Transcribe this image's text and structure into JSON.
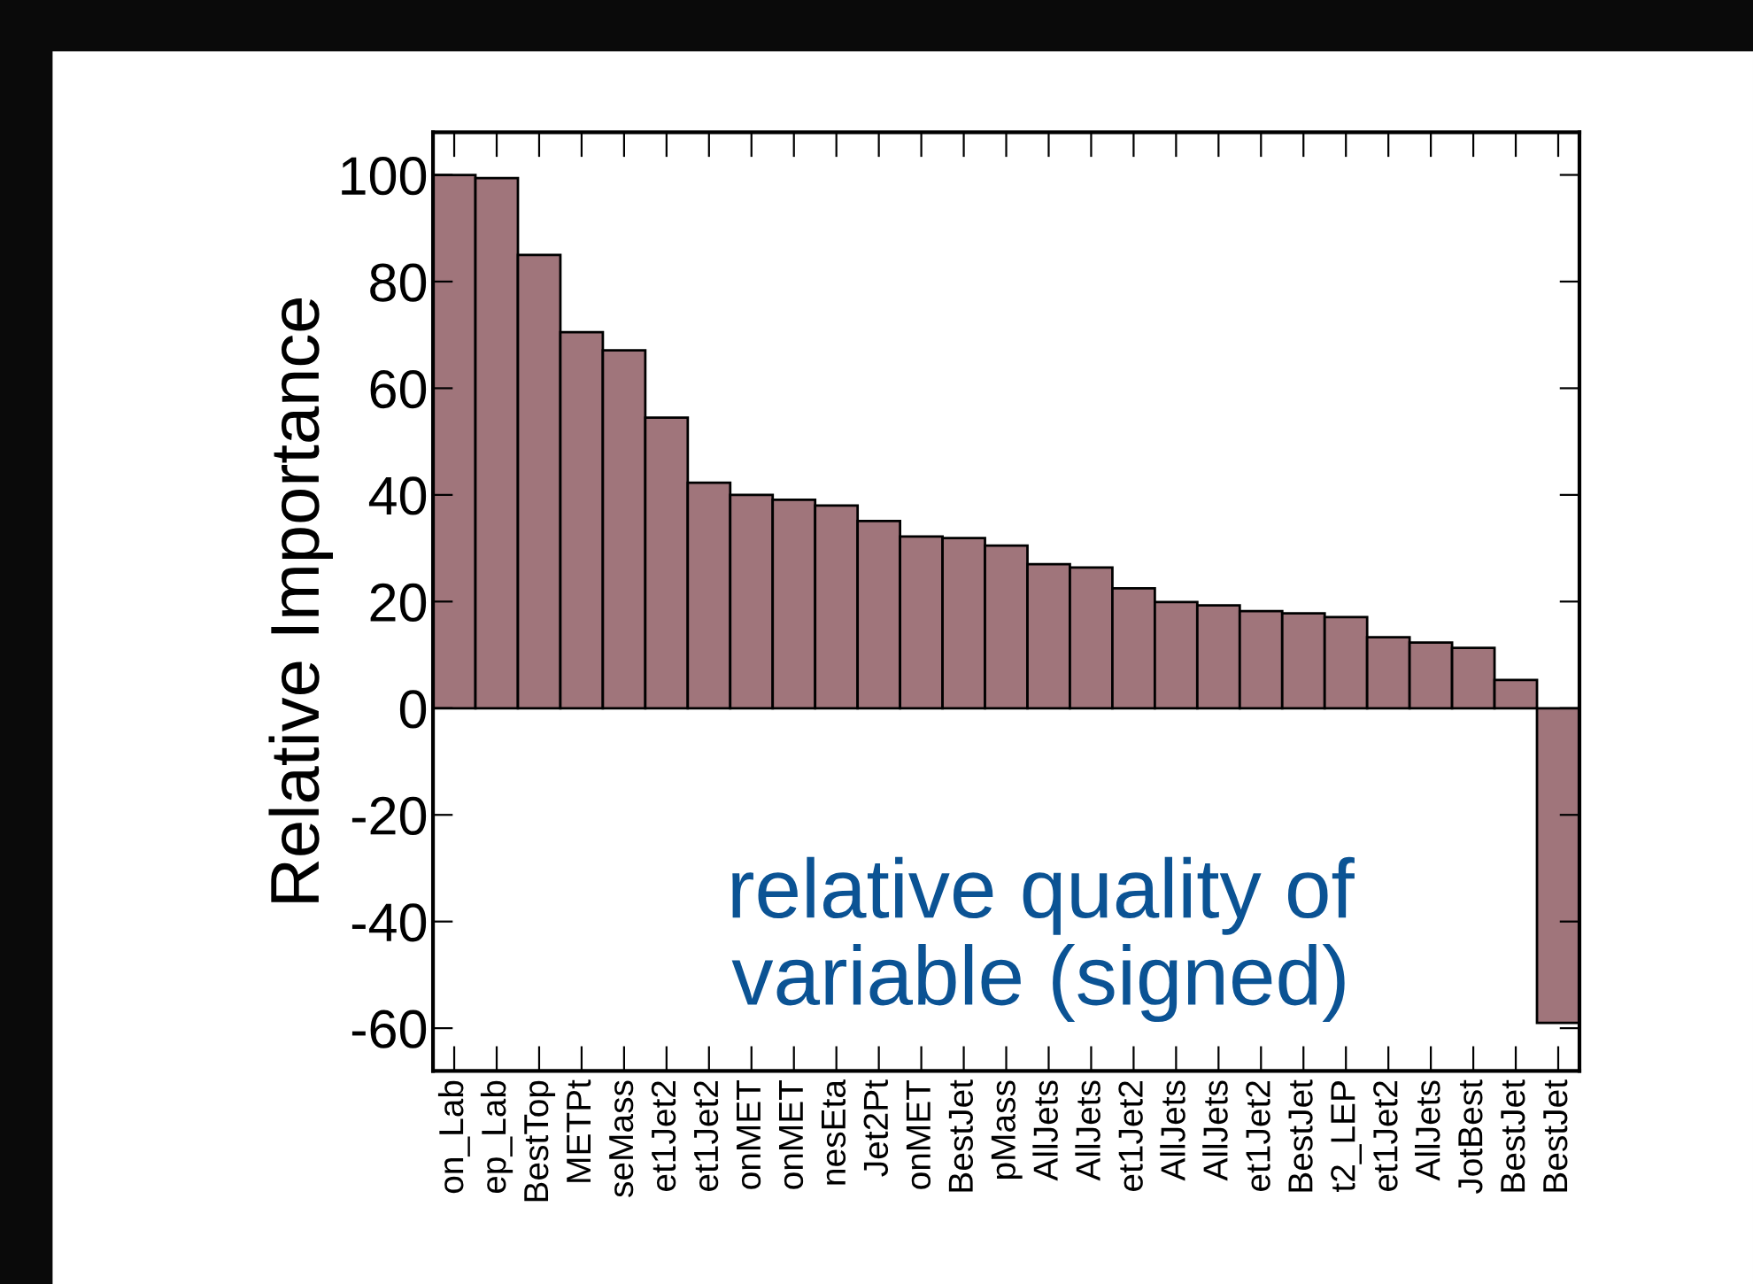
{
  "chart_data": {
    "type": "bar",
    "ylabel": "Relative Importance",
    "categories": [
      "on_Lab",
      "ep_Lab",
      "BestTop",
      "METPt",
      "seMass",
      "et1Jet2",
      "et1Jet2",
      "onMET",
      "onMET",
      "nesEta",
      "Jet2Pt",
      "onMET",
      "BestJet",
      "pMass",
      "AllJets",
      "AllJets",
      "et1Jet2",
      "AllJets",
      "AllJets",
      "et1Jet2",
      "BestJet",
      "t2_LEP",
      "et1Jet2",
      "AllJets",
      "JotBest",
      "BestJet",
      "BestJet"
    ],
    "values": [
      100,
      99.4,
      85,
      70.5,
      67.1,
      54.5,
      42.3,
      40,
      39.1,
      38,
      35.1,
      32.2,
      31.9,
      30.5,
      27,
      26.4,
      22.5,
      19.9,
      19.3,
      18.2,
      17.8,
      17.1,
      13.3,
      12.3,
      11.3,
      5.3,
      -59
    ],
    "color": "#a0757b",
    "ylim": [
      -68,
      108
    ],
    "yticks": [
      -60,
      -40,
      -20,
      0,
      20,
      40,
      60,
      80,
      100
    ],
    "grid": false,
    "annotations": [
      "relative quality of\nvariable (signed)"
    ]
  }
}
